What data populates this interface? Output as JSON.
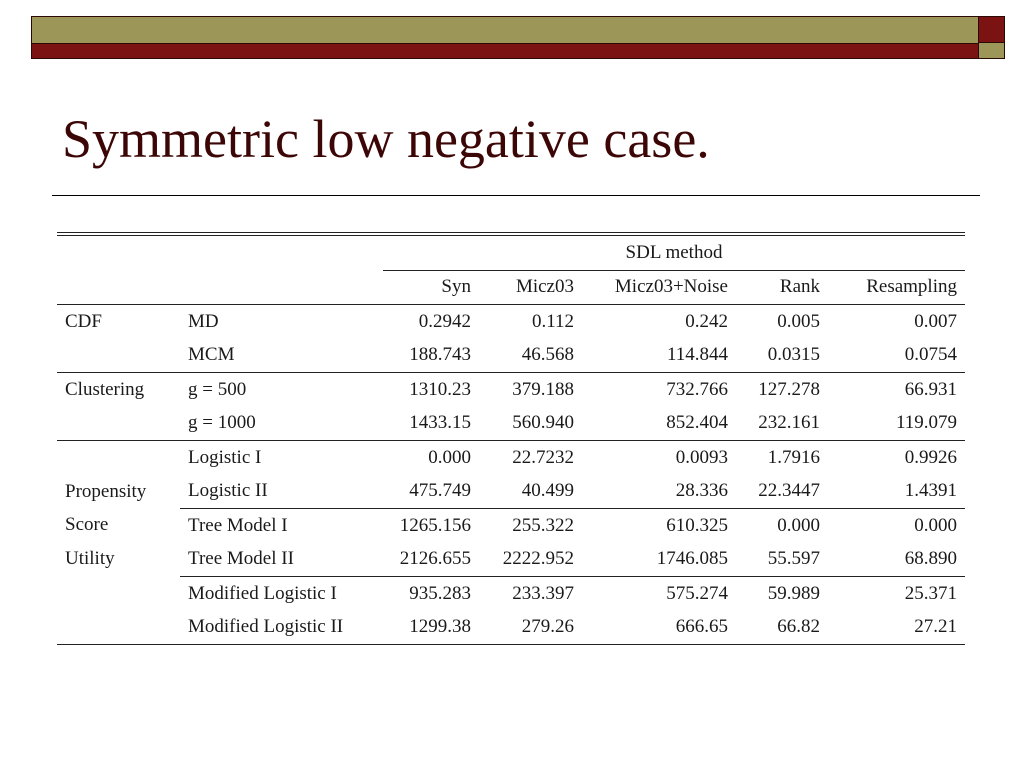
{
  "slide": {
    "title": "Symmetric low negative case."
  },
  "table": {
    "group_header": "SDL method",
    "columns": [
      "Syn",
      "Micz03",
      "Micz03+Noise",
      "Rank",
      "Resampling"
    ],
    "categories": {
      "cdf": "CDF",
      "clustering": "Clustering",
      "propensity_lines": [
        "Propensity",
        "Score",
        "Utility"
      ]
    },
    "rows": [
      {
        "measure": "MD",
        "values": [
          "0.2942",
          "0.112",
          "0.242",
          "0.005",
          "0.007"
        ]
      },
      {
        "measure": "MCM",
        "values": [
          "188.743",
          "46.568",
          "114.844",
          "0.0315",
          "0.0754"
        ]
      },
      {
        "measure": "g = 500",
        "values": [
          "1310.23",
          "379.188",
          "732.766",
          "127.278",
          "66.931"
        ]
      },
      {
        "measure": "g = 1000",
        "values": [
          "1433.15",
          "560.940",
          "852.404",
          "232.161",
          "119.079"
        ]
      },
      {
        "measure": "Logistic I",
        "values": [
          "0.000",
          "22.7232",
          "0.0093",
          "1.7916",
          "0.9926"
        ]
      },
      {
        "measure": "Logistic II",
        "values": [
          "475.749",
          "40.499",
          "28.336",
          "22.3447",
          "1.4391"
        ]
      },
      {
        "measure": "Tree Model I",
        "values": [
          "1265.156",
          "255.322",
          "610.325",
          "0.000",
          "0.000"
        ]
      },
      {
        "measure": "Tree Model II",
        "values": [
          "2126.655",
          "2222.952",
          "1746.085",
          "55.597",
          "68.890"
        ]
      },
      {
        "measure": "Modified Logistic I",
        "values": [
          "935.283",
          "233.397",
          "575.274",
          "59.989",
          "25.371"
        ]
      },
      {
        "measure": "Modified Logistic II",
        "values": [
          "1299.38",
          "279.26",
          "666.65",
          "66.82",
          "27.21"
        ]
      }
    ]
  },
  "colors": {
    "title": "#3d0606",
    "banner_olive": "#9c9758",
    "banner_maroon": "#7c1313"
  }
}
